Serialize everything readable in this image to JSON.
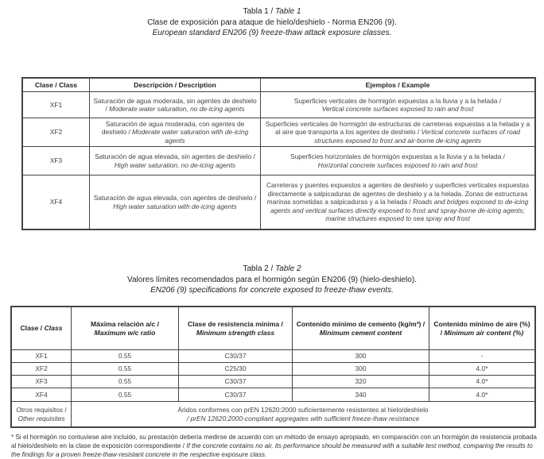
{
  "table1": {
    "label": "Tabla 1 /",
    "label_en": "Table 1",
    "title_es": "Clase de exposición para ataque de hielo/deshielo - Norma EN206 (9).",
    "title_en": "European standard EN206 (9) freeze-thaw attack exposure classes.",
    "headers": [
      "Clase / Class",
      "Descripción / Description",
      "Ejemplos / Example"
    ],
    "rows": [
      {
        "cls": "XF1",
        "desc_es": "Saturación de agua moderada, sin agentes de deshielo /",
        "desc_en": "Moderate water saturation, no de-icing agents",
        "ex_es": "Superficies verticales de hormigón expuestas a la lluvia y a la helada /",
        "ex_en": "Vertical concrete surfaces exposed to rain and frost"
      },
      {
        "cls": "XF2",
        "desc_es": "Saturación de agua moderada, con agentes de deshielo /",
        "desc_en": "Moderate water saturation with de-icing agents",
        "ex_es": "Superficies verticales de hormigón de estructuras de carreteras expuestas a la helada y a al aire que transporta a los agentes de deshielo /",
        "ex_en": "Vertical concrete surfaces of road structures exposed to frost and air-borne de-icing agents"
      },
      {
        "cls": "XF3",
        "desc_es": "Saturación de agua elevada, sin agentes de deshielo /",
        "desc_en": "High water saturation, no de-icing agents",
        "ex_es": "Superficies horizontales de hormigón expuestas a la lluvia y a la helada /",
        "ex_en": "Horizontal concrete surfaces exposed to rain and frost"
      },
      {
        "cls": "XF4",
        "desc_es": "Saturación de agua elevada, con agentes de deshielo /",
        "desc_en": "High water saturation with de-icing agents",
        "ex_es": "Carreteras y puentes expuestos a agentes de deshielo y superficies verticales expuestas directamente a salpicaduras de agentes de deshielo y a la helada. Zonas de estructuras marinas sometidas a salpicaduras y a la helada /",
        "ex_en": "Roads and bridges exposed to de-icing agents and vertical surfaces directly exposed to frost and spray-borne de-icing agents; marine structures exposed to sea spray and frost"
      }
    ]
  },
  "table2": {
    "label": "Tabla 2 /",
    "label_en": "Table 2",
    "title_es": "Valores límites recomendados para el hormigón según EN206 (9) (hielo-deshielo).",
    "title_en": "EN206 (9) specifications for concrete exposed to freeze-thaw events.",
    "headers": [
      {
        "es": "Clase /",
        "en": "Class"
      },
      {
        "es": "Máxima relación a/c /",
        "en": "Maximum w/c ratio"
      },
      {
        "es": "Clase de resistencia mínima /",
        "en": "Minimum strength class"
      },
      {
        "es": "Contenido mínimo de cemento (kg/m³) /",
        "en": "Minimum cement content"
      },
      {
        "es": "Contenido mínimo de aire (%) /",
        "en": "Minimum air content (%)"
      }
    ],
    "rows": [
      [
        "XF1",
        "0.55",
        "C30/37",
        "300",
        "-"
      ],
      [
        "XF2",
        "0.55",
        "C25/30",
        "300",
        "4.0*"
      ],
      [
        "XF3",
        "0.55",
        "C30/37",
        "320",
        "4.0*"
      ],
      [
        "XF4",
        "0.55",
        "C30/37",
        "340",
        "4.0*"
      ]
    ],
    "other_label_es": "Otros requisitos /",
    "other_label_en": "Other requisites",
    "other_es": "Áridos conformes con prEN 12620:2000 suficientemente resistentes al hielo/deshielo",
    "other_en": "/ prEN 12620:2000-compliant aggregates with sufficient freeze-thaw resistance"
  },
  "footnote": {
    "es": "* Si el hormigón no contuviese aire incluido, su prestación debería medirse de acuerdo con un método de ensayo apropiado, en comparación con un hormigón de resistencia probada al hielo/deshielo en la clase de exposición correspondiente /",
    "en": "If the concrete contains no air, its performance should be measured with a suitable test method, comparing the results to the findings for a proven freeze-thaw-resistant concrete in the respective exposure class."
  }
}
